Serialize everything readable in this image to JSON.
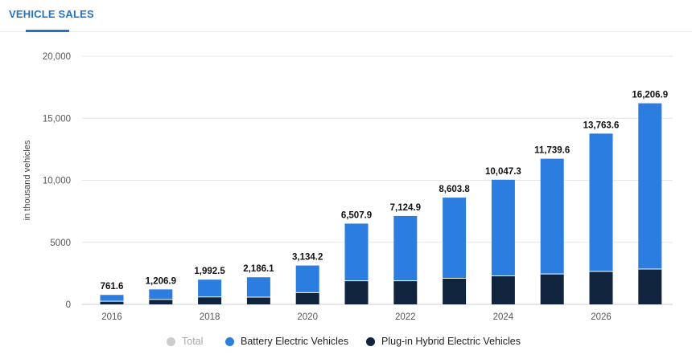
{
  "tab": {
    "label": "VEHICLE SALES"
  },
  "colors": {
    "bev": "#2b7de0",
    "phev": "#10243d",
    "total": "#cccccc",
    "grid": "#e6e6e6"
  },
  "legend": [
    {
      "key": "total",
      "label": "Total",
      "color": "#cccccc",
      "muted": true,
      "icon": "dot-icon"
    },
    {
      "key": "bev",
      "label": "Battery Electric Vehicles",
      "color": "#2b7de0",
      "muted": false,
      "icon": "dot-icon"
    },
    {
      "key": "phev",
      "label": "Plug-in Hybrid Electric Vehicles",
      "color": "#10243d",
      "muted": false,
      "icon": "dot-icon"
    }
  ],
  "chart_data": {
    "type": "bar",
    "stacked": true,
    "ylabel": "in thousand vehicles",
    "xlabel": "",
    "ylim": [
      0,
      20000
    ],
    "yticks": [
      0,
      5000,
      10000,
      15000,
      20000
    ],
    "ytick_labels": [
      "0",
      "5000",
      "10,000",
      "15,000",
      "20,000"
    ],
    "categories": [
      2016,
      2017,
      2018,
      2019,
      2020,
      2021,
      2022,
      2023,
      2024,
      2025,
      2026,
      2027
    ],
    "xtick_labels": [
      "2016",
      "2018",
      "2020",
      "2022",
      "2024",
      "2026"
    ],
    "series": [
      {
        "name": "Plug-in Hybrid Electric Vehicles",
        "key": "phev",
        "values": [
          250,
          400,
          600,
          580,
          950,
          1900,
          1900,
          2100,
          2300,
          2450,
          2650,
          2850
        ]
      },
      {
        "name": "Battery Electric Vehicles",
        "key": "bev",
        "values": [
          511.6,
          806.9,
          1392.5,
          1606.1,
          2184.2,
          4607.9,
          5224.9,
          6503.8,
          7747.3,
          9289.6,
          11113.6,
          13356.9
        ]
      }
    ],
    "totals": [
      761.6,
      1206.9,
      1992.5,
      2186.1,
      3134.2,
      6507.9,
      7124.9,
      8603.8,
      10047.3,
      11739.6,
      13763.6,
      16206.9
    ],
    "total_labels": [
      "761.6",
      "1,206.9",
      "1,992.5",
      "2,186.1",
      "3,134.2",
      "6,507.9",
      "7,124.9",
      "8,603.8",
      "10,047.3",
      "11,739.6",
      "13,763.6",
      "16,206.9"
    ],
    "grid": true,
    "legend_position": "bottom"
  }
}
